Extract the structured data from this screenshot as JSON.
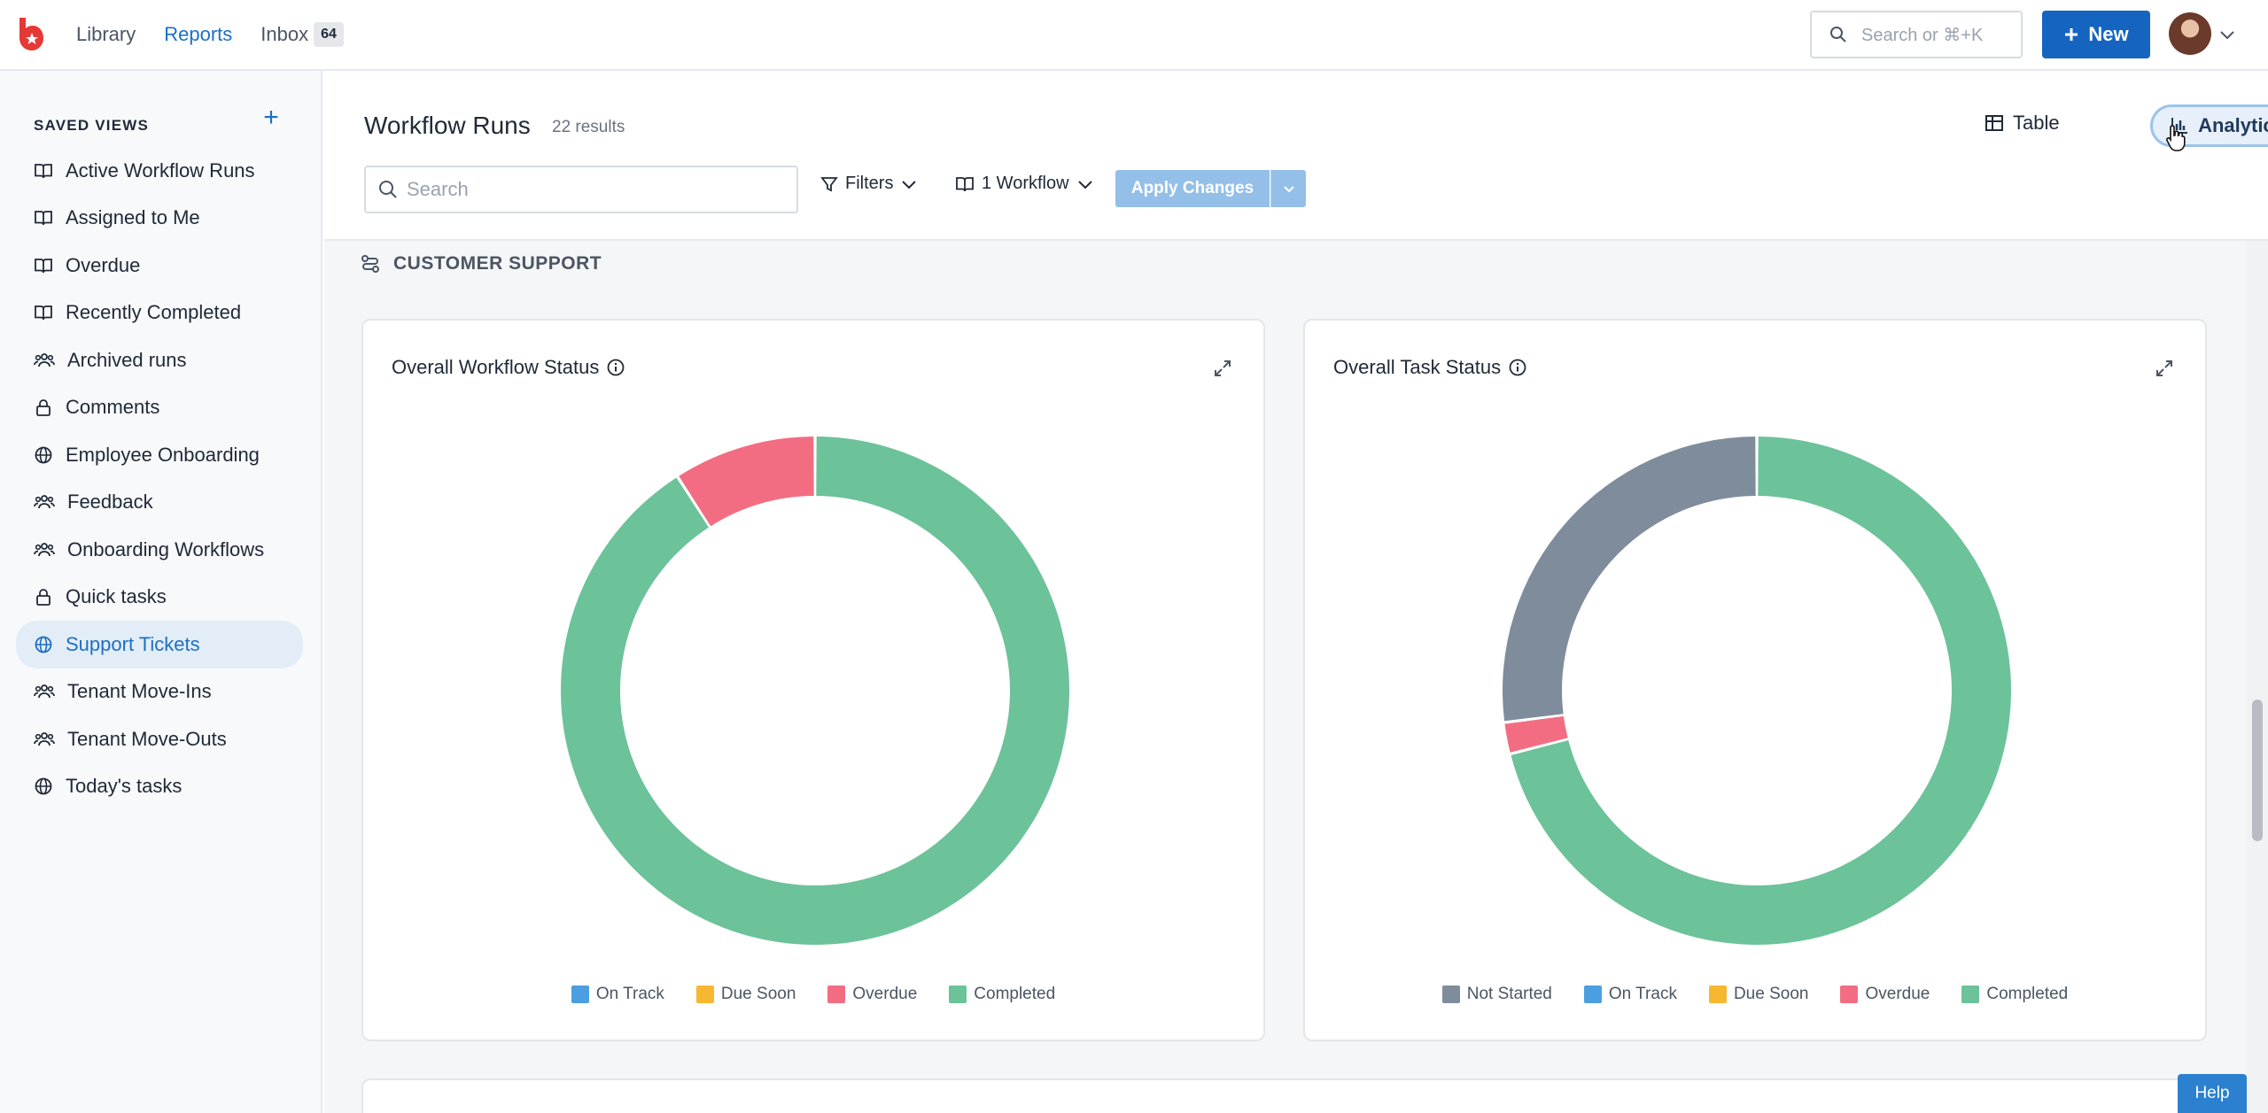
{
  "nav": {
    "library": "Library",
    "reports": "Reports",
    "inbox": "Inbox",
    "inbox_count": "64"
  },
  "top": {
    "search_placeholder": "Search or ⌘+K",
    "new_label": "New"
  },
  "sidebar": {
    "header": "SAVED VIEWS",
    "items": [
      {
        "label": "Active Workflow Runs",
        "icon": "book-icon"
      },
      {
        "label": "Assigned to Me",
        "icon": "book-icon"
      },
      {
        "label": "Overdue",
        "icon": "book-icon"
      },
      {
        "label": "Recently Completed",
        "icon": "book-icon"
      },
      {
        "label": "Archived runs",
        "icon": "users-icon"
      },
      {
        "label": "Comments",
        "icon": "lock-icon"
      },
      {
        "label": "Employee Onboarding",
        "icon": "globe-icon"
      },
      {
        "label": "Feedback",
        "icon": "users-icon"
      },
      {
        "label": "Onboarding Workflows",
        "icon": "users-icon"
      },
      {
        "label": "Quick tasks",
        "icon": "lock-icon"
      },
      {
        "label": "Support Tickets",
        "icon": "globe-icon",
        "active": true
      },
      {
        "label": "Tenant Move-Ins",
        "icon": "users-icon"
      },
      {
        "label": "Tenant Move-Outs",
        "icon": "users-icon"
      },
      {
        "label": "Today's tasks",
        "icon": "globe-icon"
      }
    ]
  },
  "main": {
    "title": "Workflow Runs",
    "results": "22 results",
    "view_table": "Table",
    "view_analytics": "Analytics",
    "search_placeholder": "Search",
    "filters_label": "Filters",
    "workflow_label": "1 Workflow",
    "apply_label": "Apply Changes",
    "section_title": "CUSTOMER SUPPORT"
  },
  "colors": {
    "not_started": "#7f8c9b",
    "on_track": "#4b9fe1",
    "due_soon": "#f7b731",
    "overdue": "#f36d82",
    "completed": "#6cc299",
    "accent": "#1565c0"
  },
  "chart_data": [
    {
      "type": "pie",
      "title": "Overall Workflow Status",
      "categories": [
        "On Track",
        "Due Soon",
        "Overdue",
        "Completed"
      ],
      "values": [
        0,
        0,
        2,
        20
      ],
      "colors": [
        "#4b9fe1",
        "#f7b731",
        "#f36d82",
        "#6cc299"
      ]
    },
    {
      "type": "pie",
      "title": "Overall Task Status",
      "categories": [
        "Not Started",
        "On Track",
        "Due Soon",
        "Overdue",
        "Completed"
      ],
      "values": [
        27,
        0,
        0,
        2,
        71
      ],
      "colors": [
        "#7f8c9b",
        "#4b9fe1",
        "#f7b731",
        "#f36d82",
        "#6cc299"
      ]
    }
  ],
  "help_label": "Help"
}
